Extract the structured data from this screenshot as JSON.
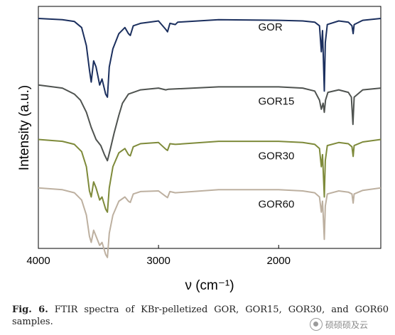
{
  "chart_data": {
    "type": "line",
    "title": "",
    "xlabel": "ν (cm⁻¹)",
    "ylabel": "Intensity (a.u.)",
    "xlim": [
      4000,
      1150
    ],
    "x_reversed": true,
    "xticks": [
      4000,
      3000,
      2000
    ],
    "yticks": [],
    "grid": false,
    "legend": "inline-labels",
    "series": [
      {
        "name": "GOR",
        "color": "#1b2f5e",
        "offset": 3.6,
        "points": [
          [
            4000,
            0.0
          ],
          [
            3800,
            -0.02
          ],
          [
            3700,
            -0.05
          ],
          [
            3640,
            -0.15
          ],
          [
            3600,
            -0.45
          ],
          [
            3575,
            -0.85
          ],
          [
            3560,
            -1.05
          ],
          [
            3540,
            -0.7
          ],
          [
            3520,
            -0.8
          ],
          [
            3490,
            -1.1
          ],
          [
            3470,
            -1.0
          ],
          [
            3440,
            -1.25
          ],
          [
            3425,
            -1.3
          ],
          [
            3410,
            -0.8
          ],
          [
            3380,
            -0.5
          ],
          [
            3330,
            -0.25
          ],
          [
            3280,
            -0.15
          ],
          [
            3250,
            -0.25
          ],
          [
            3235,
            -0.28
          ],
          [
            3210,
            -0.12
          ],
          [
            3150,
            -0.08
          ],
          [
            3000,
            -0.04
          ],
          [
            2940,
            -0.18
          ],
          [
            2925,
            -0.22
          ],
          [
            2905,
            -0.08
          ],
          [
            2860,
            -0.1
          ],
          [
            2840,
            -0.06
          ],
          [
            2500,
            -0.02
          ],
          [
            2000,
            -0.03
          ],
          [
            1800,
            -0.04
          ],
          [
            1700,
            -0.06
          ],
          [
            1660,
            -0.12
          ],
          [
            1645,
            -0.55
          ],
          [
            1635,
            -0.2
          ],
          [
            1620,
            -1.2
          ],
          [
            1612,
            -0.4
          ],
          [
            1595,
            -0.1
          ],
          [
            1500,
            -0.04
          ],
          [
            1420,
            -0.06
          ],
          [
            1390,
            -0.12
          ],
          [
            1380,
            -0.25
          ],
          [
            1372,
            -0.1
          ],
          [
            1300,
            -0.03
          ],
          [
            1150,
            0.0
          ]
        ]
      },
      {
        "name": "GOR15",
        "color": "#4f5350",
        "offset": 2.5,
        "points": [
          [
            4000,
            0.0
          ],
          [
            3800,
            -0.05
          ],
          [
            3700,
            -0.15
          ],
          [
            3650,
            -0.25
          ],
          [
            3600,
            -0.45
          ],
          [
            3560,
            -0.7
          ],
          [
            3520,
            -0.9
          ],
          [
            3480,
            -1.0
          ],
          [
            3450,
            -1.15
          ],
          [
            3425,
            -1.25
          ],
          [
            3400,
            -1.05
          ],
          [
            3370,
            -0.8
          ],
          [
            3330,
            -0.5
          ],
          [
            3300,
            -0.3
          ],
          [
            3250,
            -0.15
          ],
          [
            3150,
            -0.08
          ],
          [
            3000,
            -0.05
          ],
          [
            2940,
            -0.08
          ],
          [
            2920,
            -0.07
          ],
          [
            2500,
            -0.03
          ],
          [
            2000,
            -0.03
          ],
          [
            1800,
            -0.05
          ],
          [
            1700,
            -0.1
          ],
          [
            1660,
            -0.25
          ],
          [
            1645,
            -0.4
          ],
          [
            1630,
            -0.3
          ],
          [
            1620,
            -0.45
          ],
          [
            1610,
            -0.25
          ],
          [
            1590,
            -0.12
          ],
          [
            1500,
            -0.08
          ],
          [
            1420,
            -0.12
          ],
          [
            1395,
            -0.2
          ],
          [
            1382,
            -0.65
          ],
          [
            1372,
            -0.2
          ],
          [
            1300,
            -0.08
          ],
          [
            1150,
            -0.05
          ]
        ]
      },
      {
        "name": "GOR30",
        "color": "#7e8a3a",
        "offset": 1.6,
        "points": [
          [
            4000,
            0.0
          ],
          [
            3800,
            -0.03
          ],
          [
            3700,
            -0.08
          ],
          [
            3640,
            -0.2
          ],
          [
            3600,
            -0.45
          ],
          [
            3575,
            -0.85
          ],
          [
            3560,
            -0.95
          ],
          [
            3540,
            -0.7
          ],
          [
            3520,
            -0.8
          ],
          [
            3490,
            -1.0
          ],
          [
            3470,
            -0.95
          ],
          [
            3440,
            -1.15
          ],
          [
            3425,
            -1.2
          ],
          [
            3410,
            -0.8
          ],
          [
            3380,
            -0.45
          ],
          [
            3330,
            -0.22
          ],
          [
            3280,
            -0.15
          ],
          [
            3250,
            -0.25
          ],
          [
            3235,
            -0.27
          ],
          [
            3210,
            -0.12
          ],
          [
            3150,
            -0.07
          ],
          [
            3000,
            -0.05
          ],
          [
            2940,
            -0.16
          ],
          [
            2925,
            -0.18
          ],
          [
            2905,
            -0.07
          ],
          [
            2860,
            -0.08
          ],
          [
            2500,
            -0.03
          ],
          [
            2000,
            -0.03
          ],
          [
            1800,
            -0.05
          ],
          [
            1700,
            -0.08
          ],
          [
            1660,
            -0.15
          ],
          [
            1645,
            -0.45
          ],
          [
            1635,
            -0.25
          ],
          [
            1620,
            -0.95
          ],
          [
            1612,
            -0.35
          ],
          [
            1595,
            -0.1
          ],
          [
            1500,
            -0.05
          ],
          [
            1420,
            -0.07
          ],
          [
            1390,
            -0.12
          ],
          [
            1380,
            -0.28
          ],
          [
            1372,
            -0.1
          ],
          [
            1300,
            -0.04
          ],
          [
            1150,
            0.0
          ]
        ]
      },
      {
        "name": "GOR60",
        "color": "#bdb0a0",
        "offset": 0.8,
        "points": [
          [
            4000,
            0.0
          ],
          [
            3800,
            -0.03
          ],
          [
            3700,
            -0.08
          ],
          [
            3640,
            -0.2
          ],
          [
            3600,
            -0.45
          ],
          [
            3575,
            -0.8
          ],
          [
            3560,
            -0.9
          ],
          [
            3540,
            -0.7
          ],
          [
            3520,
            -0.8
          ],
          [
            3490,
            -0.95
          ],
          [
            3470,
            -0.9
          ],
          [
            3440,
            -1.1
          ],
          [
            3425,
            -1.15
          ],
          [
            3410,
            -0.75
          ],
          [
            3380,
            -0.45
          ],
          [
            3330,
            -0.22
          ],
          [
            3280,
            -0.15
          ],
          [
            3250,
            -0.22
          ],
          [
            3235,
            -0.24
          ],
          [
            3210,
            -0.1
          ],
          [
            3150,
            -0.06
          ],
          [
            3000,
            -0.05
          ],
          [
            2940,
            -0.14
          ],
          [
            2925,
            -0.16
          ],
          [
            2905,
            -0.06
          ],
          [
            2860,
            -0.08
          ],
          [
            2500,
            -0.03
          ],
          [
            2000,
            -0.03
          ],
          [
            1800,
            -0.05
          ],
          [
            1700,
            -0.08
          ],
          [
            1660,
            -0.15
          ],
          [
            1645,
            -0.4
          ],
          [
            1635,
            -0.22
          ],
          [
            1620,
            -0.85
          ],
          [
            1612,
            -0.3
          ],
          [
            1595,
            -0.1
          ],
          [
            1500,
            -0.05
          ],
          [
            1420,
            -0.07
          ],
          [
            1390,
            -0.1
          ],
          [
            1380,
            -0.25
          ],
          [
            1372,
            -0.1
          ],
          [
            1300,
            -0.04
          ],
          [
            1150,
            0.0
          ]
        ]
      }
    ]
  },
  "caption": {
    "label": "Fig.  6.",
    "text": "FTIR  spectra  of  KBr-pelletized  GOR,  GOR15,  GOR30,  and GOR60 samples."
  },
  "watermark": {
    "text": "硕硕硕及云"
  }
}
